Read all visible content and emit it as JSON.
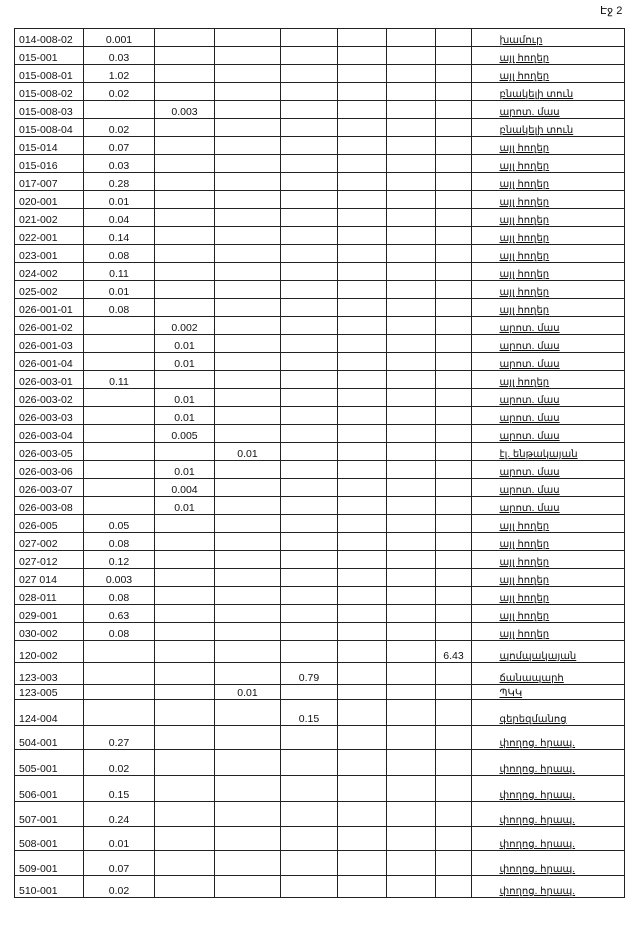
{
  "page_label": "Էջ 2",
  "rows": [
    {
      "code": "014-008-02",
      "cells": [
        "0.001",
        "",
        "",
        "",
        "",
        "",
        "",
        ""
      ],
      "desc": "խամուր"
    },
    {
      "code": "015-001",
      "cells": [
        "0.03",
        "",
        "",
        "",
        "",
        "",
        "",
        ""
      ],
      "desc": "այլ հողեր"
    },
    {
      "code": "015-008-01",
      "cells": [
        "1.02",
        "",
        "",
        "",
        "",
        "",
        "",
        ""
      ],
      "desc": "այլ հողեր"
    },
    {
      "code": "015-008-02",
      "cells": [
        "0.02",
        "",
        "",
        "",
        "",
        "",
        "",
        ""
      ],
      "desc": "բնակելի տուն"
    },
    {
      "code": "015-008-03",
      "cells": [
        "",
        "0.003",
        "",
        "",
        "",
        "",
        "",
        ""
      ],
      "desc": "արոտ. մաս"
    },
    {
      "code": "015-008-04",
      "cells": [
        "0.02",
        "",
        "",
        "",
        "",
        "",
        "",
        ""
      ],
      "desc": "բնակելի տուն"
    },
    {
      "code": "015-014",
      "cells": [
        "0.07",
        "",
        "",
        "",
        "",
        "",
        "",
        ""
      ],
      "desc": "այլ հողեր"
    },
    {
      "code": "015-016",
      "cells": [
        "0.03",
        "",
        "",
        "",
        "",
        "",
        "",
        ""
      ],
      "desc": "այլ հողեր"
    },
    {
      "code": "017-007",
      "cells": [
        "0.28",
        "",
        "",
        "",
        "",
        "",
        "",
        ""
      ],
      "desc": "այլ հողեր"
    },
    {
      "code": "020-001",
      "cells": [
        "0.01",
        "",
        "",
        "",
        "",
        "",
        "",
        ""
      ],
      "desc": "այլ հողեր"
    },
    {
      "code": "021-002",
      "cells": [
        "0.04",
        "",
        "",
        "",
        "",
        "",
        "",
        ""
      ],
      "desc": "այլ հողեր"
    },
    {
      "code": "022-001",
      "cells": [
        "0.14",
        "",
        "",
        "",
        "",
        "",
        "",
        ""
      ],
      "desc": "այլ հողեր"
    },
    {
      "code": "023-001",
      "cells": [
        "0.08",
        "",
        "",
        "",
        "",
        "",
        "",
        ""
      ],
      "desc": "այլ հողեր"
    },
    {
      "code": "024-002",
      "cells": [
        "0.11",
        "",
        "",
        "",
        "",
        "",
        "",
        ""
      ],
      "desc": "այլ հողեր"
    },
    {
      "code": "025-002",
      "cells": [
        "0.01",
        "",
        "",
        "",
        "",
        "",
        "",
        ""
      ],
      "desc": "այլ հողեր"
    },
    {
      "code": "026-001-01",
      "cells": [
        "0.08",
        "",
        "",
        "",
        "",
        "",
        "",
        ""
      ],
      "desc": "այլ հողեր"
    },
    {
      "code": "026-001-02",
      "cells": [
        "",
        "0.002",
        "",
        "",
        "",
        "",
        "",
        ""
      ],
      "desc": "արոտ. մաս"
    },
    {
      "code": "026-001-03",
      "cells": [
        "",
        "0.01",
        "",
        "",
        "",
        "",
        "",
        ""
      ],
      "desc": "արոտ. մաս"
    },
    {
      "code": "026-001-04",
      "cells": [
        "",
        "0.01",
        "",
        "",
        "",
        "",
        "",
        ""
      ],
      "desc": "արոտ. մաս"
    },
    {
      "code": "026-003-01",
      "cells": [
        "0.11",
        "",
        "",
        "",
        "",
        "",
        "",
        ""
      ],
      "desc": "այլ հողեր"
    },
    {
      "code": "026-003-02",
      "cells": [
        "",
        "0.01",
        "",
        "",
        "",
        "",
        "",
        ""
      ],
      "desc": "արոտ. մաս"
    },
    {
      "code": "026-003-03",
      "cells": [
        "",
        "0.01",
        "",
        "",
        "",
        "",
        "",
        ""
      ],
      "desc": "արոտ. մաս"
    },
    {
      "code": "026-003-04",
      "cells": [
        "",
        "0.005",
        "",
        "",
        "",
        "",
        "",
        ""
      ],
      "desc": "արոտ. մաս"
    },
    {
      "code": "026-003-05",
      "cells": [
        "",
        "",
        "0.01",
        "",
        "",
        "",
        "",
        ""
      ],
      "desc": "էլ. ենթակայան"
    },
    {
      "code": "026-003-06",
      "cells": [
        "",
        "0.01",
        "",
        "",
        "",
        "",
        "",
        ""
      ],
      "desc": "արոտ. մաս"
    },
    {
      "code": "026-003-07",
      "cells": [
        "",
        "0.004",
        "",
        "",
        "",
        "",
        "",
        ""
      ],
      "desc": "արոտ. մաս"
    },
    {
      "code": "026-003-08",
      "cells": [
        "",
        "0.01",
        "",
        "",
        "",
        "",
        "",
        ""
      ],
      "desc": "արոտ. մաս"
    },
    {
      "code": "026-005",
      "cells": [
        "0.05",
        "",
        "",
        "",
        "",
        "",
        "",
        ""
      ],
      "desc": "այլ հողեր"
    },
    {
      "code": "027-002",
      "cells": [
        "0.08",
        "",
        "",
        "",
        "",
        "",
        "",
        ""
      ],
      "desc": "այլ հողեր"
    },
    {
      "code": "027-012",
      "cells": [
        "0.12",
        "",
        "",
        "",
        "",
        "",
        "",
        ""
      ],
      "desc": "այլ հողեր"
    },
    {
      "code": "027 014",
      "cells": [
        "0.003",
        "",
        "",
        "",
        "",
        "",
        "",
        ""
      ],
      "desc": "այլ հողեր"
    },
    {
      "code": "028-011",
      "cells": [
        "0.08",
        "",
        "",
        "",
        "",
        "",
        "",
        ""
      ],
      "desc": "այլ հողեր"
    },
    {
      "code": "029-001",
      "cells": [
        "0.63",
        "",
        "",
        "",
        "",
        "",
        "",
        ""
      ],
      "desc": "այլ հողեր"
    },
    {
      "code": "030-002",
      "cells": [
        "0.08",
        "",
        "",
        "",
        "",
        "",
        "",
        ""
      ],
      "desc": "այլ հողեր"
    },
    {
      "code": "120-002",
      "cells": [
        "",
        "",
        "",
        "",
        "",
        "",
        "6.43",
        ""
      ],
      "desc": "պոմպակայան"
    },
    {
      "code": "123-003",
      "cells": [
        "",
        "",
        "",
        "0.79",
        "",
        "",
        "",
        ""
      ],
      "desc": "ճանապարհ"
    },
    {
      "code": "123-005",
      "cells": [
        "",
        "",
        "0.01",
        "",
        "",
        "",
        "",
        ""
      ],
      "desc": "ՊԿԿ"
    },
    {
      "code": "124-004",
      "cells": [
        "",
        "",
        "",
        "0.15",
        "",
        "",
        "",
        ""
      ],
      "desc": "գերեզմանոց"
    },
    {
      "code": "504-001",
      "cells": [
        "0.27",
        "",
        "",
        "",
        "",
        "",
        "",
        ""
      ],
      "desc": "փողոց. հրապ."
    },
    {
      "code": "505-001",
      "cells": [
        "0.02",
        "",
        "",
        "",
        "",
        "",
        "",
        ""
      ],
      "desc": "փողոց. հրապ."
    },
    {
      "code": "506-001",
      "cells": [
        "0.15",
        "",
        "",
        "",
        "",
        "",
        "",
        ""
      ],
      "desc": "փողոց. հրապ."
    },
    {
      "code": "507-001",
      "cells": [
        "0.24",
        "",
        "",
        "",
        "",
        "",
        "",
        ""
      ],
      "desc": "փողոց. հրապ."
    },
    {
      "code": "508-001",
      "cells": [
        "0.01",
        "",
        "",
        "",
        "",
        "",
        "",
        ""
      ],
      "desc": "փողոց. հրապ."
    },
    {
      "code": "509-001",
      "cells": [
        "0.07",
        "",
        "",
        "",
        "",
        "",
        "",
        ""
      ],
      "desc": "փողոց. հրապ."
    },
    {
      "code": "510-001",
      "cells": [
        "0.02",
        "",
        "",
        "",
        "",
        "",
        "",
        ""
      ],
      "desc": "փողոց. հրապ."
    }
  ]
}
